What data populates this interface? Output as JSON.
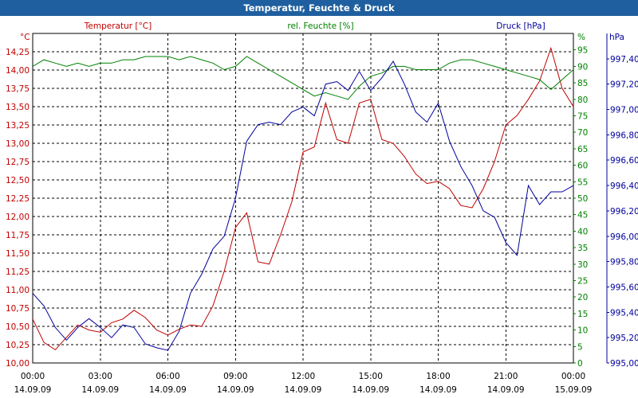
{
  "title": "Temperatur, Feuchte & Druck",
  "colors": {
    "temperature": "#c00000",
    "humidity": "#008000",
    "pressure": "#00009a",
    "title_bg": "#1f5f9f"
  },
  "chart_data": {
    "type": "line",
    "title": "Temperatur, Feuchte & Druck",
    "x_hours": [
      0,
      0.5,
      1,
      1.5,
      2,
      2.5,
      3,
      3.5,
      4,
      4.5,
      5,
      5.5,
      6,
      6.5,
      7,
      7.5,
      8,
      8.5,
      9,
      9.5,
      10,
      10.5,
      11,
      11.5,
      12,
      12.5,
      13,
      13.5,
      14,
      14.5,
      15,
      15.5,
      16,
      16.5,
      17,
      17.5,
      18,
      18.5,
      19,
      19.5,
      20,
      20.5,
      21,
      21.5,
      22,
      22.5,
      23,
      23.5,
      24
    ],
    "x_tick_times": [
      "00:00",
      "03:00",
      "06:00",
      "09:00",
      "12:00",
      "15:00",
      "18:00",
      "21:00",
      "00:00"
    ],
    "x_tick_dates": [
      "14.09.09",
      "14.09.09",
      "14.09.09",
      "14.09.09",
      "14.09.09",
      "14.09.09",
      "14.09.09",
      "14.09.09",
      "15.09.09"
    ],
    "axes": {
      "temperature": {
        "label": "Temperatur [°C]",
        "unit": "°C",
        "ylim": [
          10.0,
          14.5
        ],
        "ticks": [
          "10,00",
          "10,25",
          "10,50",
          "10,75",
          "11,00",
          "11,25",
          "11,50",
          "11,75",
          "12,00",
          "12,25",
          "12,50",
          "12,75",
          "13,00",
          "13,25",
          "13,50",
          "13,75",
          "14,00",
          "14,25"
        ]
      },
      "humidity": {
        "label": "rel. Feuchte [%]",
        "unit": "%",
        "ylim": [
          0,
          100
        ],
        "ticks": [
          "0",
          "5",
          "10",
          "15",
          "20",
          "25",
          "30",
          "35",
          "40",
          "45",
          "50",
          "55",
          "60",
          "65",
          "70",
          "75",
          "80",
          "85",
          "90",
          "95"
        ]
      },
      "pressure": {
        "label": "Druck [hPa]",
        "unit": "hPa",
        "ylim": [
          995.0,
          997.6
        ],
        "ticks": [
          "995,00",
          "995,20",
          "995,40",
          "995,60",
          "995,80",
          "996,00",
          "996,20",
          "996,40",
          "996,60",
          "996,80",
          "997,00",
          "997,20",
          "997,40"
        ]
      }
    },
    "grid": true,
    "series": [
      {
        "name": "Temperatur",
        "axis": "temperature",
        "values": [
          10.6,
          10.28,
          10.18,
          10.35,
          10.52,
          10.45,
          10.42,
          10.55,
          10.6,
          10.72,
          10.62,
          10.45,
          10.38,
          10.46,
          10.52,
          10.5,
          10.78,
          11.25,
          11.85,
          12.05,
          11.38,
          11.35,
          11.75,
          12.2,
          12.88,
          12.95,
          13.55,
          13.05,
          13.0,
          13.55,
          13.6,
          13.05,
          13.0,
          12.82,
          12.58,
          12.45,
          12.48,
          12.38,
          12.15,
          12.12,
          12.38,
          12.75,
          13.25,
          13.38,
          13.6,
          13.85,
          14.3,
          13.75,
          13.5
        ]
      },
      {
        "name": "rel. Feuchte",
        "axis": "humidity",
        "values": [
          90,
          92,
          91,
          90,
          91,
          90,
          91,
          91,
          92,
          92,
          93,
          93,
          93,
          92,
          93,
          92,
          91,
          89,
          90,
          93,
          91,
          89,
          87,
          85,
          83,
          81,
          82,
          81,
          80,
          84,
          87,
          88,
          90,
          90,
          89,
          89,
          89,
          91,
          92,
          92,
          91,
          90,
          89,
          88,
          87,
          86,
          83,
          86,
          89
        ]
      },
      {
        "name": "Druck",
        "axis": "pressure",
        "values": [
          995.55,
          995.45,
          995.28,
          995.18,
          995.28,
          995.35,
          995.28,
          995.2,
          995.3,
          995.28,
          995.15,
          995.12,
          995.1,
          995.25,
          995.55,
          995.7,
          995.9,
          996.0,
          996.3,
          996.75,
          996.88,
          996.9,
          996.88,
          996.98,
          997.02,
          996.95,
          997.2,
          997.22,
          997.15,
          997.3,
          997.15,
          997.25,
          997.38,
          997.2,
          996.98,
          996.9,
          997.05,
          996.75,
          996.55,
          996.4,
          996.2,
          996.15,
          995.95,
          995.85,
          996.4,
          996.25,
          996.35,
          996.35,
          996.4
        ]
      }
    ]
  }
}
